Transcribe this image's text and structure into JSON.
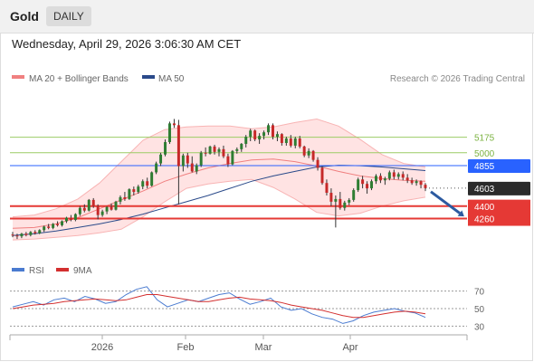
{
  "header": {
    "title": "Gold",
    "timeframe": "DAILY"
  },
  "datetime": "Wednesday, April 29, 2026 3:06:30 AM CET",
  "legend": {
    "ma20": "MA 20 + Bollinger Bands",
    "ma50": "MA 50",
    "copyright": "Research © 2026 Trading Central"
  },
  "colors": {
    "up": "#2e7d32",
    "down": "#c62828",
    "band": "#ffe0e0",
    "ma20": "#f08080",
    "ma50": "#2a4a8a",
    "resistance": "#9ccc65",
    "pivot": "#2962ff",
    "support": "#e53935",
    "rsi": "#4a7bd0",
    "rsi_ma": "#d32f2f"
  },
  "chart_data": [
    {
      "type": "candlestick",
      "ylim": [
        3950,
        5700
      ],
      "x_ticks": [
        "2026",
        "Feb",
        "Mar",
        "Apr"
      ],
      "levels": [
        {
          "value": 5175,
          "label": "5175",
          "kind": "resistance"
        },
        {
          "value": 5000,
          "label": "5000",
          "kind": "resistance"
        },
        {
          "value": 4855,
          "label": "4855",
          "kind": "pivot"
        },
        {
          "value": 4603,
          "label": "4603",
          "kind": "last"
        },
        {
          "value": 4400,
          "label": "4400",
          "kind": "support"
        },
        {
          "value": 4260,
          "label": "4260",
          "kind": "support"
        }
      ],
      "candles": [
        [
          4080,
          4110,
          4050,
          4070
        ],
        [
          4070,
          4090,
          4030,
          4060
        ],
        [
          4060,
          4100,
          4040,
          4090
        ],
        [
          4090,
          4110,
          4060,
          4075
        ],
        [
          4075,
          4120,
          4060,
          4110
        ],
        [
          4110,
          4130,
          4080,
          4095
        ],
        [
          4095,
          4140,
          4085,
          4130
        ],
        [
          4130,
          4180,
          4110,
          4170
        ],
        [
          4170,
          4200,
          4140,
          4155
        ],
        [
          4155,
          4210,
          4140,
          4200
        ],
        [
          4200,
          4230,
          4170,
          4185
        ],
        [
          4185,
          4240,
          4170,
          4230
        ],
        [
          4230,
          4280,
          4210,
          4270
        ],
        [
          4270,
          4300,
          4230,
          4245
        ],
        [
          4245,
          4320,
          4230,
          4310
        ],
        [
          4310,
          4400,
          4290,
          4380
        ],
        [
          4380,
          4420,
          4330,
          4350
        ],
        [
          4350,
          4480,
          4340,
          4470
        ],
        [
          4470,
          4490,
          4380,
          4400
        ],
        [
          4400,
          4420,
          4250,
          4300
        ],
        [
          4300,
          4360,
          4280,
          4340
        ],
        [
          4340,
          4400,
          4310,
          4390
        ],
        [
          4390,
          4430,
          4350,
          4360
        ],
        [
          4360,
          4460,
          4350,
          4450
        ],
        [
          4450,
          4520,
          4420,
          4500
        ],
        [
          4500,
          4560,
          4460,
          4480
        ],
        [
          4480,
          4600,
          4470,
          4590
        ],
        [
          4590,
          4620,
          4520,
          4560
        ],
        [
          4560,
          4640,
          4540,
          4620
        ],
        [
          4620,
          4700,
          4590,
          4680
        ],
        [
          4680,
          4720,
          4600,
          4630
        ],
        [
          4630,
          4790,
          4620,
          4780
        ],
        [
          4780,
          4900,
          4760,
          4880
        ],
        [
          4880,
          5000,
          4850,
          4980
        ],
        [
          4980,
          5150,
          4960,
          5120
        ],
        [
          5120,
          5350,
          5100,
          5330
        ],
        [
          5330,
          5380,
          5280,
          5310
        ],
        [
          5310,
          5370,
          4420,
          4850
        ],
        [
          4850,
          4990,
          4790,
          4970
        ],
        [
          4970,
          5000,
          4830,
          4880
        ],
        [
          4880,
          4960,
          4780,
          4790
        ],
        [
          4790,
          4880,
          4760,
          4860
        ],
        [
          4860,
          5020,
          4840,
          5000
        ],
        [
          5000,
          5060,
          4960,
          4990
        ],
        [
          4990,
          5080,
          4980,
          5070
        ],
        [
          5070,
          5090,
          4980,
          5010
        ],
        [
          5010,
          5060,
          4960,
          5040
        ],
        [
          5040,
          5080,
          4940,
          4960
        ],
        [
          4960,
          4990,
          4840,
          4870
        ],
        [
          4870,
          5030,
          4860,
          5020
        ],
        [
          5020,
          5060,
          4990,
          5040
        ],
        [
          5040,
          5110,
          5010,
          5100
        ],
        [
          5100,
          5200,
          5060,
          5180
        ],
        [
          5180,
          5270,
          5130,
          5250
        ],
        [
          5250,
          5260,
          5130,
          5150
        ],
        [
          5150,
          5220,
          5100,
          5190
        ],
        [
          5190,
          5250,
          5150,
          5230
        ],
        [
          5230,
          5330,
          5200,
          5310
        ],
        [
          5310,
          5330,
          5150,
          5180
        ],
        [
          5180,
          5240,
          5130,
          5210
        ],
        [
          5210,
          5220,
          5080,
          5110
        ],
        [
          5110,
          5180,
          5080,
          5160
        ],
        [
          5160,
          5200,
          5060,
          5080
        ],
        [
          5080,
          5180,
          5050,
          5160
        ],
        [
          5160,
          5190,
          5050,
          5070
        ],
        [
          5070,
          5080,
          4950,
          4970
        ],
        [
          4970,
          5050,
          4940,
          5020
        ],
        [
          5020,
          5030,
          4900,
          4920
        ],
        [
          4920,
          4950,
          4800,
          4830
        ],
        [
          4830,
          4850,
          4640,
          4660
        ],
        [
          4660,
          4700,
          4520,
          4550
        ],
        [
          4550,
          4600,
          4400,
          4450
        ],
        [
          4450,
          4520,
          4160,
          4480
        ],
        [
          4480,
          4560,
          4360,
          4380
        ],
        [
          4380,
          4460,
          4350,
          4440
        ],
        [
          4440,
          4490,
          4410,
          4470
        ],
        [
          4470,
          4600,
          4450,
          4580
        ],
        [
          4580,
          4720,
          4560,
          4700
        ],
        [
          4700,
          4740,
          4600,
          4650
        ],
        [
          4650,
          4680,
          4540,
          4600
        ],
        [
          4600,
          4700,
          4580,
          4680
        ],
        [
          4680,
          4760,
          4650,
          4740
        ],
        [
          4740,
          4770,
          4660,
          4690
        ],
        [
          4690,
          4730,
          4640,
          4710
        ],
        [
          4710,
          4800,
          4690,
          4780
        ],
        [
          4780,
          4810,
          4700,
          4730
        ],
        [
          4730,
          4780,
          4700,
          4760
        ],
        [
          4760,
          4790,
          4690,
          4720
        ],
        [
          4720,
          4760,
          4660,
          4690
        ],
        [
          4690,
          4720,
          4640,
          4660
        ],
        [
          4660,
          4700,
          4630,
          4680
        ],
        [
          4680,
          4690,
          4600,
          4640
        ],
        [
          4640,
          4660,
          4570,
          4603
        ]
      ],
      "mid": [
        4150,
        4160,
        4200,
        4270,
        4370,
        4470,
        4570,
        4680,
        4760,
        4830,
        4880,
        4920,
        4930,
        4900,
        4850,
        4790,
        4740,
        4710,
        4690,
        4680
      ],
      "upper": [
        4280,
        4300,
        4370,
        4480,
        4660,
        4900,
        5140,
        5260,
        5290,
        5300,
        5300,
        5270,
        5290,
        5340,
        5380,
        5300,
        5150,
        4980,
        4880,
        4840
      ],
      "lower": [
        4020,
        4030,
        4050,
        4070,
        4100,
        4140,
        4280,
        4450,
        4600,
        4650,
        4680,
        4700,
        4610,
        4480,
        4330,
        4290,
        4320,
        4400,
        4460,
        4500
      ],
      "ma50": [
        4070,
        4090,
        4120,
        4160,
        4200,
        4250,
        4310,
        4380,
        4450,
        4520,
        4600,
        4680,
        4740,
        4790,
        4840,
        4860,
        4855,
        4840,
        4820,
        4800
      ]
    },
    {
      "type": "line",
      "title": "RSI",
      "legend": [
        "RSI",
        "9MA"
      ],
      "ylim": [
        20,
        80
      ],
      "y_ticks": [
        70,
        50,
        30
      ],
      "rsi": [
        52,
        55,
        58,
        54,
        60,
        62,
        58,
        64,
        61,
        56,
        58,
        66,
        72,
        75,
        60,
        52,
        56,
        60,
        58,
        62,
        66,
        68,
        61,
        55,
        58,
        62,
        52,
        48,
        50,
        44,
        40,
        38,
        33,
        36,
        42,
        46,
        48,
        50,
        47,
        45,
        40
      ],
      "rsi_ma": [
        50,
        52,
        54,
        55,
        56,
        58,
        59,
        60,
        61,
        60,
        59,
        60,
        63,
        66,
        66,
        64,
        62,
        60,
        58,
        58,
        60,
        62,
        63,
        61,
        60,
        59,
        57,
        54,
        52,
        50,
        48,
        45,
        42,
        40,
        40,
        42,
        44,
        46,
        47,
        46,
        44
      ]
    }
  ]
}
